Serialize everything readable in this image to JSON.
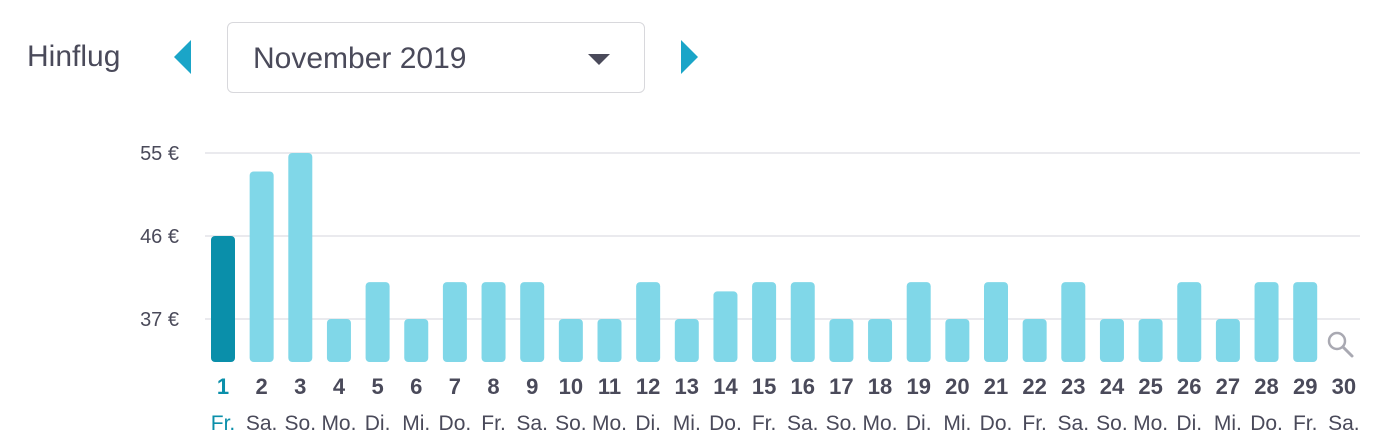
{
  "header": {
    "label": "Hinflug",
    "month": "November 2019",
    "prev_icon": "chevron-left-icon",
    "next_icon": "chevron-right-icon"
  },
  "colors": {
    "bar": "#80d7e8",
    "selected": "#0a8faa",
    "accent": "#1aa5c8",
    "text": "#4a4a5a"
  },
  "search_icon": "search-icon",
  "chart_data": {
    "type": "bar",
    "title": "",
    "xlabel": "",
    "ylabel": "",
    "unit": "€",
    "ylim": [
      32,
      55
    ],
    "yticks": [
      37,
      46,
      55
    ],
    "ytick_labels": [
      "37 €",
      "46 €",
      "55 €"
    ],
    "grid": true,
    "selected_index": 0,
    "categories": [
      "1",
      "2",
      "3",
      "4",
      "5",
      "6",
      "7",
      "8",
      "9",
      "10",
      "11",
      "12",
      "13",
      "14",
      "15",
      "16",
      "17",
      "18",
      "19",
      "20",
      "21",
      "22",
      "23",
      "24",
      "25",
      "26",
      "27",
      "28",
      "29",
      "30"
    ],
    "weekdays": [
      "Fr.",
      "Sa.",
      "So.",
      "Mo.",
      "Di.",
      "Mi.",
      "Do.",
      "Fr.",
      "Sa.",
      "So.",
      "Mo.",
      "Di.",
      "Mi.",
      "Do.",
      "Fr.",
      "Sa.",
      "So.",
      "Mo.",
      "Di.",
      "Mi.",
      "Do.",
      "Fr.",
      "Sa.",
      "So.",
      "Mo.",
      "Di.",
      "Mi.",
      "Do.",
      "Fr.",
      "Sa."
    ],
    "values": [
      46,
      53,
      55,
      37,
      41,
      37,
      41,
      41,
      41,
      37,
      37,
      41,
      37,
      40,
      41,
      41,
      37,
      37,
      41,
      37,
      41,
      37,
      41,
      37,
      37,
      41,
      37,
      41,
      41,
      null
    ]
  }
}
